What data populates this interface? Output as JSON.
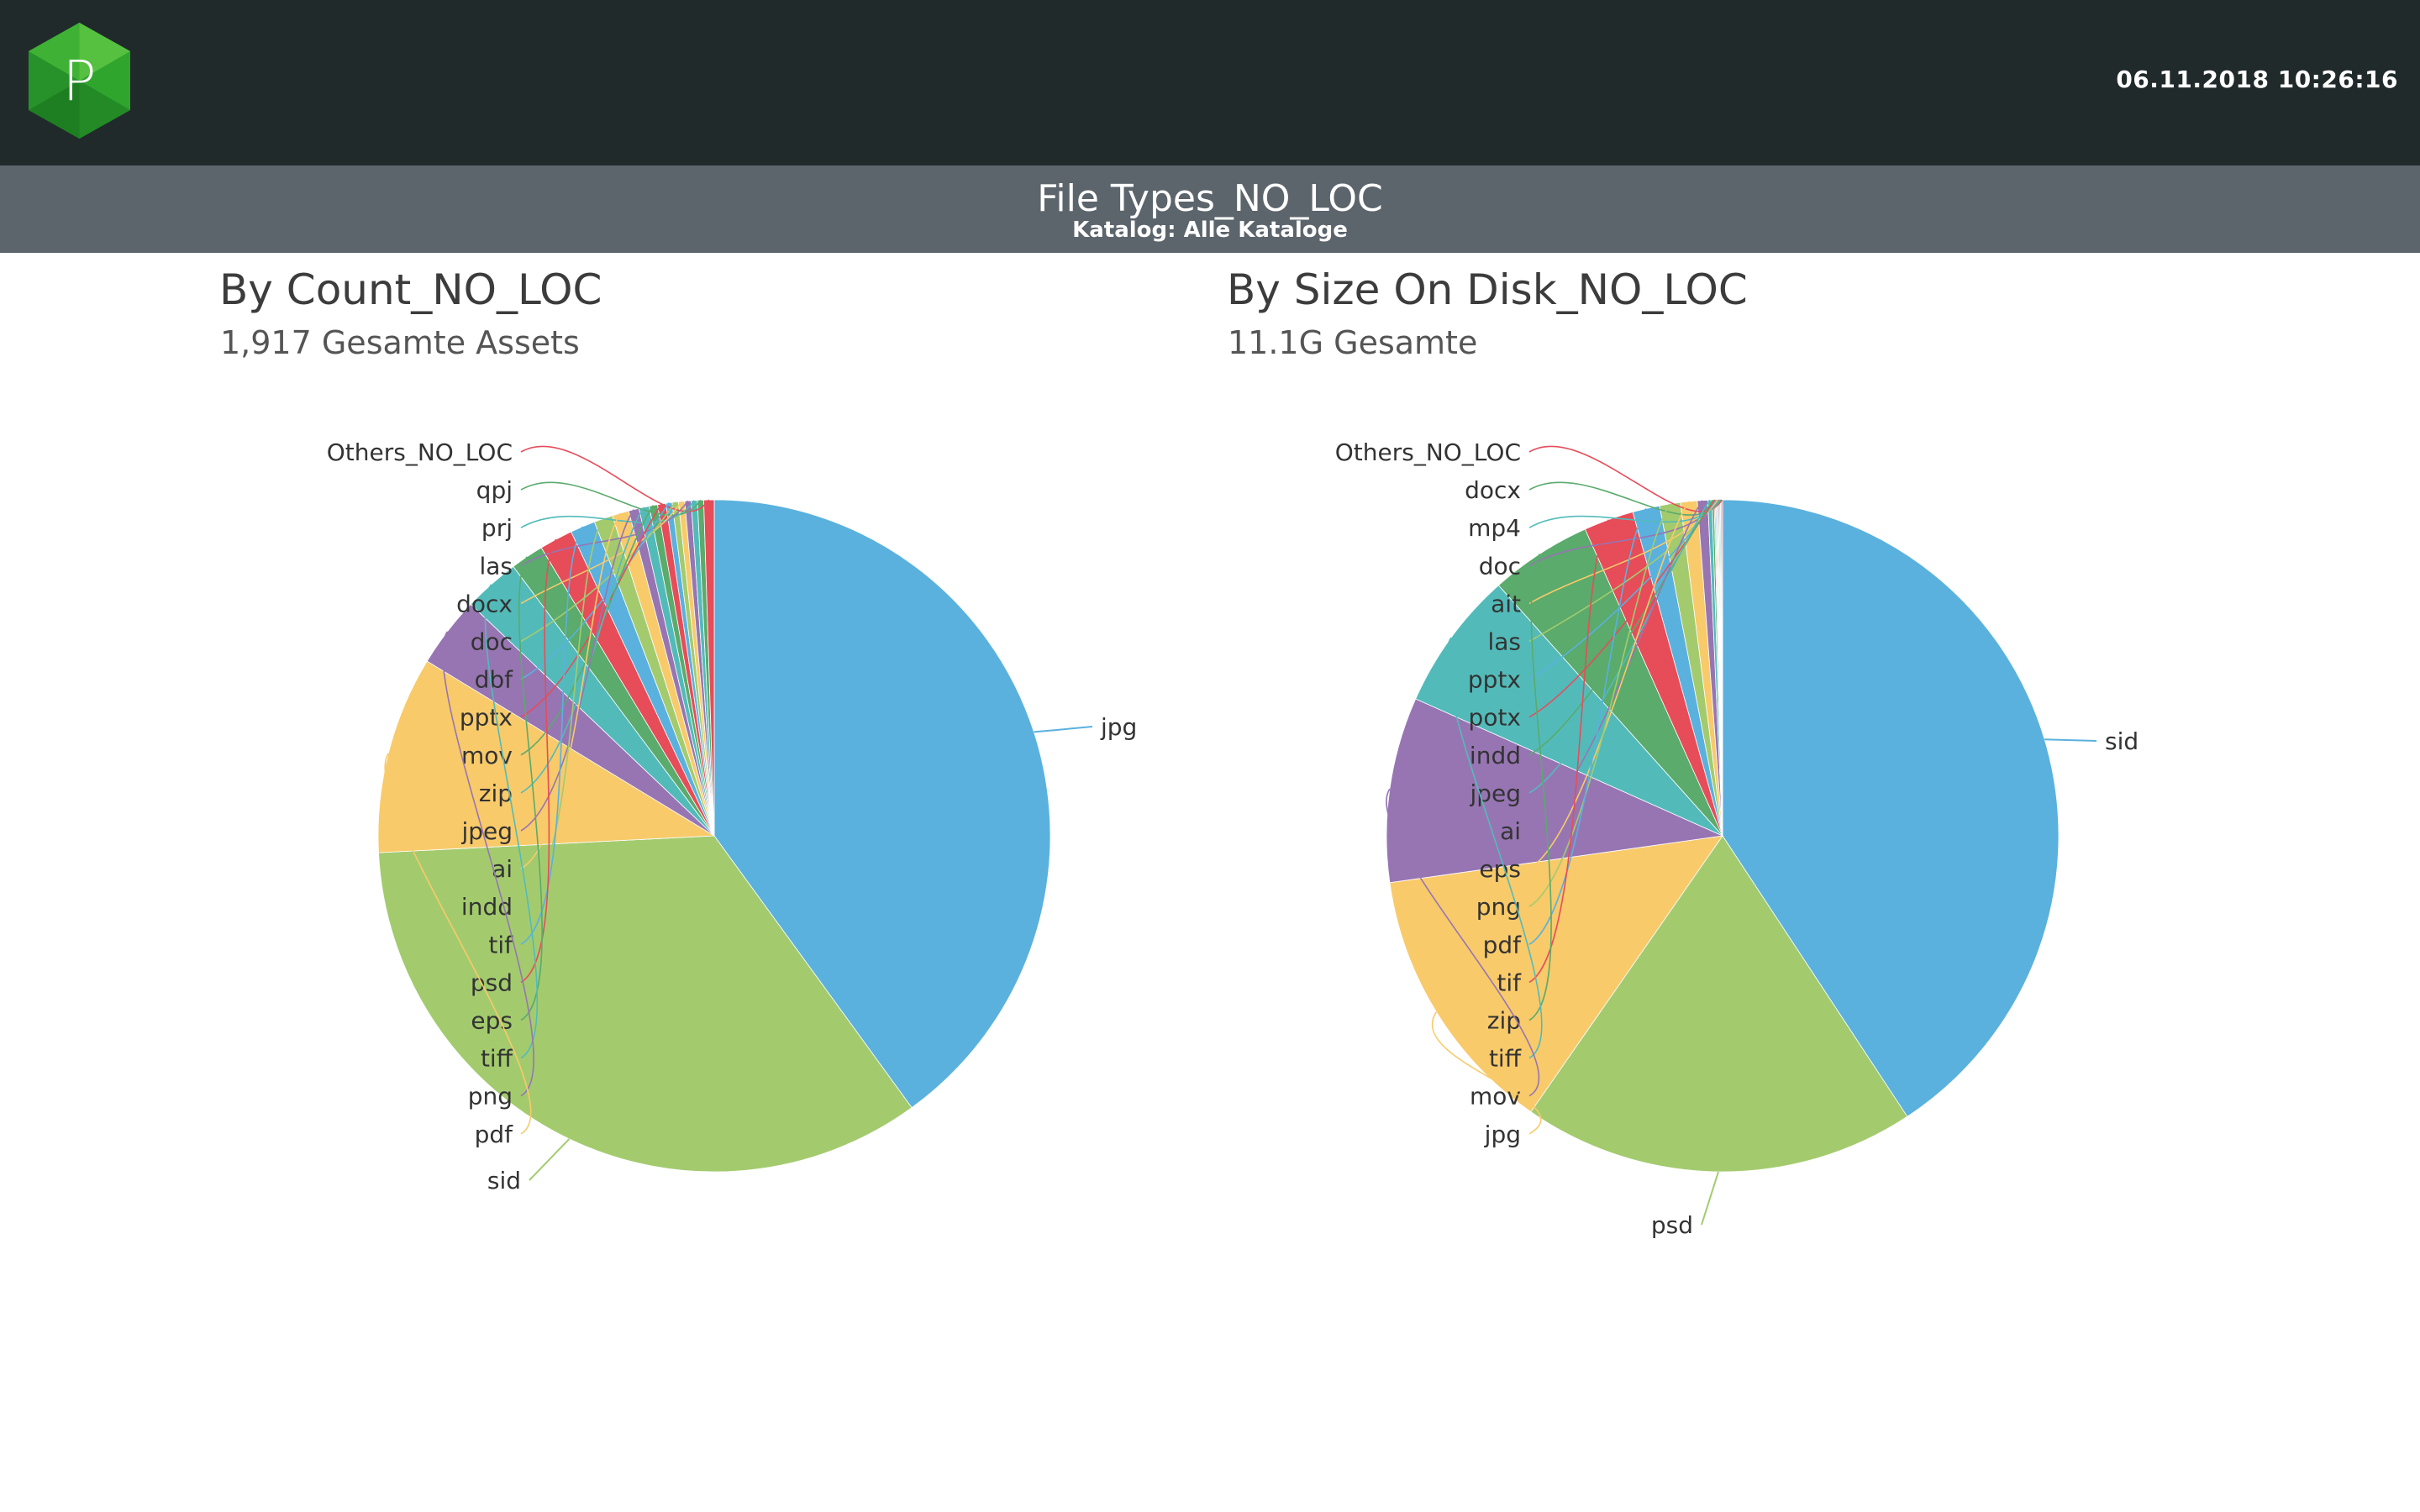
{
  "header": {
    "timestamp": "06.11.2018 10:26:16",
    "logo_letter": "P",
    "logo_icon": "hexagon-logo-icon"
  },
  "report": {
    "title": "File Types_NO_LOC",
    "subtitle": "Katalog: Alle Kataloge"
  },
  "panels": {
    "count": {
      "title": "By Count_NO_LOC",
      "subtitle": "1,917 Gesamte Assets"
    },
    "size": {
      "title": "By Size On Disk_NO_LOC",
      "subtitle": "11.1G Gesamte"
    }
  },
  "chart_data": [
    {
      "type": "pie",
      "title": "By Count_NO_LOC",
      "start_angle": 0,
      "direction": "clockwise",
      "slices": [
        {
          "label": "jpg",
          "value": 40.0,
          "color": "#5ab1de"
        },
        {
          "label": "sid",
          "value": 34.2,
          "color": "#a3cb6e"
        },
        {
          "label": "pdf",
          "value": 9.5,
          "color": "#f8ca6a"
        },
        {
          "label": "png",
          "value": 3.4,
          "color": "#9775b3"
        },
        {
          "label": "tiff",
          "value": 2.7,
          "color": "#52bbba"
        },
        {
          "label": "eps",
          "value": 1.6,
          "color": "#5aab6c"
        },
        {
          "label": "psd",
          "value": 1.6,
          "color": "#e74c59"
        },
        {
          "label": "tif",
          "value": 1.2,
          "color": "#5ab1de"
        },
        {
          "label": "indd",
          "value": 0.9,
          "color": "#a3cb6e"
        },
        {
          "label": "ai",
          "value": 0.8,
          "color": "#f8ca6a"
        },
        {
          "label": "jpeg",
          "value": 0.5,
          "color": "#9775b3"
        },
        {
          "label": "zip",
          "value": 0.5,
          "color": "#52bbba"
        },
        {
          "label": "mov",
          "value": 0.4,
          "color": "#5aab6c"
        },
        {
          "label": "pptx",
          "value": 0.4,
          "color": "#e74c59"
        },
        {
          "label": "dbf",
          "value": 0.3,
          "color": "#5ab1de"
        },
        {
          "label": "doc",
          "value": 0.3,
          "color": "#a3cb6e"
        },
        {
          "label": "docx",
          "value": 0.3,
          "color": "#f8ca6a"
        },
        {
          "label": "las",
          "value": 0.3,
          "color": "#9775b3"
        },
        {
          "label": "prj",
          "value": 0.3,
          "color": "#52bbba"
        },
        {
          "label": "qpj",
          "value": 0.3,
          "color": "#5aab6c"
        },
        {
          "label": "Others_NO_LOC",
          "value": 0.5,
          "color": "#e74c59"
        }
      ]
    },
    {
      "type": "pie",
      "title": "By Size On Disk_NO_LOC",
      "start_angle": 0,
      "direction": "clockwise",
      "slices": [
        {
          "label": "sid",
          "value": 40.7,
          "color": "#5ab1de"
        },
        {
          "label": "psd",
          "value": 18.9,
          "color": "#a3cb6e"
        },
        {
          "label": "jpg",
          "value": 13.1,
          "color": "#f8ca6a"
        },
        {
          "label": "mov",
          "value": 8.9,
          "color": "#9775b3"
        },
        {
          "label": "tiff",
          "value": 6.7,
          "color": "#52bbba"
        },
        {
          "label": "zip",
          "value": 4.9,
          "color": "#5aab6c"
        },
        {
          "label": "tif",
          "value": 2.4,
          "color": "#e74c59"
        },
        {
          "label": "pdf",
          "value": 1.3,
          "color": "#5ab1de"
        },
        {
          "label": "png",
          "value": 1.0,
          "color": "#a3cb6e"
        },
        {
          "label": "eps",
          "value": 0.8,
          "color": "#f8ca6a"
        },
        {
          "label": "ai",
          "value": 0.5,
          "color": "#9775b3"
        },
        {
          "label": "jpeg",
          "value": 0.2,
          "color": "#52bbba"
        },
        {
          "label": "indd",
          "value": 0.1,
          "color": "#5aab6c"
        },
        {
          "label": "potx",
          "value": 0.05,
          "color": "#e74c59"
        },
        {
          "label": "pptx",
          "value": 0.05,
          "color": "#5ab1de"
        },
        {
          "label": "las",
          "value": 0.05,
          "color": "#a3cb6e"
        },
        {
          "label": "ait",
          "value": 0.05,
          "color": "#f8ca6a"
        },
        {
          "label": "doc",
          "value": 0.05,
          "color": "#9775b3"
        },
        {
          "label": "mp4",
          "value": 0.05,
          "color": "#52bbba"
        },
        {
          "label": "docx",
          "value": 0.05,
          "color": "#5aab6c"
        },
        {
          "label": "Others_NO_LOC",
          "value": 0.05,
          "color": "#e74c59"
        }
      ]
    }
  ]
}
